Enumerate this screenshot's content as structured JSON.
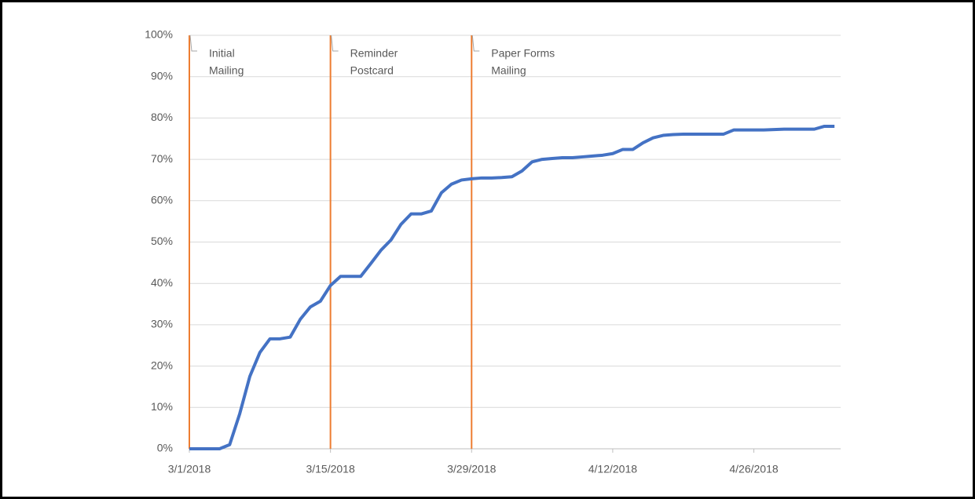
{
  "chart_data": {
    "type": "line",
    "x": [
      "2018-03-01",
      "2018-03-02",
      "2018-03-03",
      "2018-03-04",
      "2018-03-05",
      "2018-03-06",
      "2018-03-07",
      "2018-03-08",
      "2018-03-09",
      "2018-03-10",
      "2018-03-11",
      "2018-03-12",
      "2018-03-13",
      "2018-03-14",
      "2018-03-15",
      "2018-03-16",
      "2018-03-17",
      "2018-03-18",
      "2018-03-19",
      "2018-03-20",
      "2018-03-21",
      "2018-03-22",
      "2018-03-23",
      "2018-03-24",
      "2018-03-25",
      "2018-03-26",
      "2018-03-27",
      "2018-03-28",
      "2018-03-29",
      "2018-03-30",
      "2018-03-31",
      "2018-04-01",
      "2018-04-02",
      "2018-04-03",
      "2018-04-04",
      "2018-04-05",
      "2018-04-06",
      "2018-04-07",
      "2018-04-08",
      "2018-04-09",
      "2018-04-10",
      "2018-04-11",
      "2018-04-12",
      "2018-04-13",
      "2018-04-14",
      "2018-04-15",
      "2018-04-16",
      "2018-04-17",
      "2018-04-18",
      "2018-04-19",
      "2018-04-20",
      "2018-04-21",
      "2018-04-22",
      "2018-04-23",
      "2018-04-24",
      "2018-04-25",
      "2018-04-26",
      "2018-04-27",
      "2018-04-28",
      "2018-04-29",
      "2018-04-30",
      "2018-05-01",
      "2018-05-02",
      "2018-05-03",
      "2018-05-04"
    ],
    "values": [
      0,
      0,
      0,
      0,
      1,
      8.5,
      17.5,
      23.3,
      26.6,
      26.6,
      27,
      31.3,
      34.3,
      35.7,
      39.5,
      41.7,
      41.7,
      41.7,
      44.8,
      48,
      50.5,
      54.3,
      56.8,
      56.8,
      57.5,
      61.9,
      64,
      65,
      65.3,
      65.5,
      65.5,
      65.6,
      65.8,
      67.2,
      69.4,
      70,
      70.2,
      70.4,
      70.4,
      70.6,
      70.8,
      71,
      71.4,
      72.4,
      72.4,
      74,
      75.2,
      75.8,
      76,
      76.1,
      76.1,
      76.1,
      76.1,
      76.1,
      77.1,
      77.1,
      77.1,
      77.1,
      77.2,
      77.3,
      77.3,
      77.3,
      77.3,
      78,
      78
    ],
    "color": "#4472c4",
    "xlim": [
      "2018-03-01",
      "2018-05-05"
    ],
    "xticks": [
      {
        "value": "2018-03-01",
        "label": "3/1/2018"
      },
      {
        "value": "2018-03-15",
        "label": "3/15/2018"
      },
      {
        "value": "2018-03-29",
        "label": "3/29/2018"
      },
      {
        "value": "2018-04-12",
        "label": "4/12/2018"
      },
      {
        "value": "2018-04-26",
        "label": "4/26/2018"
      }
    ],
    "ylim": [
      0,
      100
    ],
    "yticks": [
      {
        "value": 0,
        "label": "0%"
      },
      {
        "value": 10,
        "label": "10%"
      },
      {
        "value": 20,
        "label": "20%"
      },
      {
        "value": 30,
        "label": "30%"
      },
      {
        "value": 40,
        "label": "40%"
      },
      {
        "value": 50,
        "label": "50%"
      },
      {
        "value": 60,
        "label": "60%"
      },
      {
        "value": 70,
        "label": "70%"
      },
      {
        "value": 80,
        "label": "80%"
      },
      {
        "value": 90,
        "label": "90%"
      },
      {
        "value": 100,
        "label": "100%"
      }
    ],
    "grid": true,
    "annotations": [
      {
        "x": "2018-03-01",
        "lines": [
          "Initial",
          "Mailing"
        ],
        "color": "#ed7d31"
      },
      {
        "x": "2018-03-15",
        "lines": [
          "Reminder",
          "Postcard"
        ],
        "color": "#ed7d31"
      },
      {
        "x": "2018-03-29",
        "lines": [
          "Paper Forms",
          "Mailing"
        ],
        "color": "#ed7d31"
      }
    ]
  }
}
